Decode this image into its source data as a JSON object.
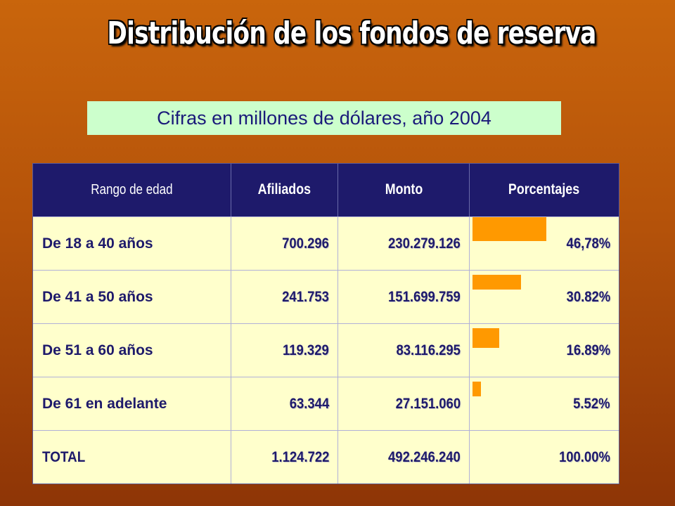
{
  "title": "Distribución de los fondos de reserva",
  "subtitle": "Cifras en millones de dólares, año 2004",
  "table": {
    "headers": [
      "Rango de edad",
      "Afiliados",
      "Monto",
      "Porcentajes"
    ],
    "rows": [
      {
        "range": "De 18 a 40 años",
        "afiliados": "700.296",
        "monto": "230.279.126",
        "porcentaje": "46,78%",
        "bar_fraction": 0.4678
      },
      {
        "range": "De 41 a 50 años",
        "afiliados": "241.753",
        "monto": "151.699.759",
        "porcentaje": "30.82%",
        "bar_fraction": 0.3082
      },
      {
        "range": "De 51 a 60 años",
        "afiliados": "119.329",
        "monto": "83.116.295",
        "porcentaje": "16.89%",
        "bar_fraction": 0.1689
      },
      {
        "range": "De 61 en adelante",
        "afiliados": "63.344",
        "monto": "27.151.060",
        "porcentaje": "5.52%",
        "bar_fraction": 0.0552
      }
    ],
    "total": {
      "range": "TOTAL",
      "afiliados": "1.124.722",
      "monto": "492.246.240",
      "porcentaje": "100.00%"
    }
  },
  "colors": {
    "bar": "#ff9900",
    "header_bg": "#1e1a6b",
    "row_bg": "#ffffcc",
    "subtitle_bg": "#ccffcc"
  }
}
